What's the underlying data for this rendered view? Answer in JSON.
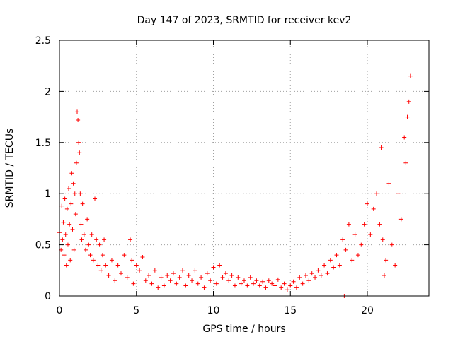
{
  "chart_data": {
    "type": "scatter",
    "title": "Day 147 of 2023, SRMTID for receiver kev2",
    "xlabel": "GPS time / hours",
    "ylabel": "SRMTID / TECUs",
    "xlim": [
      0,
      24
    ],
    "ylim": [
      0,
      2.5
    ],
    "xticks": [
      0,
      5,
      10,
      15,
      20
    ],
    "xtick_labels": [
      "0",
      "5",
      "10",
      "15",
      "20"
    ],
    "yticks": [
      0,
      0.5,
      1,
      1.5,
      2,
      2.5
    ],
    "ytick_labels": [
      "0",
      "0.5",
      "1",
      "1.5",
      "2",
      "2.5"
    ],
    "grid": true,
    "marker": "+",
    "color": "#ff0000",
    "series": [
      {
        "name": "SRMTID",
        "points": [
          [
            0.0,
            0.62
          ],
          [
            0.1,
            0.45
          ],
          [
            0.15,
            0.88
          ],
          [
            0.2,
            0.55
          ],
          [
            0.25,
            0.72
          ],
          [
            0.3,
            0.4
          ],
          [
            0.35,
            0.95
          ],
          [
            0.4,
            0.6
          ],
          [
            0.45,
            0.3
          ],
          [
            0.5,
            0.85
          ],
          [
            0.55,
            0.5
          ],
          [
            0.6,
            1.05
          ],
          [
            0.65,
            0.7
          ],
          [
            0.7,
            0.35
          ],
          [
            0.75,
            0.9
          ],
          [
            0.8,
            1.2
          ],
          [
            0.85,
            0.65
          ],
          [
            0.9,
            1.1
          ],
          [
            0.95,
            0.45
          ],
          [
            1.0,
            1.0
          ],
          [
            1.05,
            0.8
          ],
          [
            1.1,
            1.3
          ],
          [
            1.15,
            1.8
          ],
          [
            1.2,
            1.72
          ],
          [
            1.25,
            1.5
          ],
          [
            1.3,
            1.4
          ],
          [
            1.35,
            1.0
          ],
          [
            1.4,
            0.7
          ],
          [
            1.45,
            0.55
          ],
          [
            1.5,
            0.9
          ],
          [
            1.6,
            0.6
          ],
          [
            1.7,
            0.45
          ],
          [
            1.8,
            0.75
          ],
          [
            1.9,
            0.5
          ],
          [
            2.0,
            0.4
          ],
          [
            2.1,
            0.6
          ],
          [
            2.2,
            0.35
          ],
          [
            2.3,
            0.95
          ],
          [
            2.4,
            0.55
          ],
          [
            2.5,
            0.3
          ],
          [
            2.6,
            0.5
          ],
          [
            2.7,
            0.25
          ],
          [
            2.8,
            0.4
          ],
          [
            2.9,
            0.55
          ],
          [
            3.0,
            0.3
          ],
          [
            3.2,
            0.2
          ],
          [
            3.4,
            0.35
          ],
          [
            3.6,
            0.15
          ],
          [
            3.8,
            0.3
          ],
          [
            4.0,
            0.22
          ],
          [
            4.2,
            0.4
          ],
          [
            4.4,
            0.18
          ],
          [
            4.6,
            0.55
          ],
          [
            4.7,
            0.35
          ],
          [
            4.8,
            0.12
          ],
          [
            5.0,
            0.3
          ],
          [
            5.2,
            0.25
          ],
          [
            5.4,
            0.38
          ],
          [
            5.6,
            0.15
          ],
          [
            5.8,
            0.2
          ],
          [
            6.0,
            0.12
          ],
          [
            6.2,
            0.25
          ],
          [
            6.4,
            0.08
          ],
          [
            6.6,
            0.18
          ],
          [
            6.8,
            0.1
          ],
          [
            7.0,
            0.2
          ],
          [
            7.2,
            0.15
          ],
          [
            7.4,
            0.22
          ],
          [
            7.6,
            0.12
          ],
          [
            7.8,
            0.18
          ],
          [
            8.0,
            0.25
          ],
          [
            8.2,
            0.1
          ],
          [
            8.4,
            0.2
          ],
          [
            8.6,
            0.15
          ],
          [
            8.8,
            0.25
          ],
          [
            9.0,
            0.12
          ],
          [
            9.2,
            0.18
          ],
          [
            9.4,
            0.08
          ],
          [
            9.6,
            0.22
          ],
          [
            9.8,
            0.15
          ],
          [
            10.0,
            0.28
          ],
          [
            10.2,
            0.12
          ],
          [
            10.4,
            0.3
          ],
          [
            10.6,
            0.18
          ],
          [
            10.8,
            0.22
          ],
          [
            11.0,
            0.15
          ],
          [
            11.2,
            0.2
          ],
          [
            11.4,
            0.1
          ],
          [
            11.6,
            0.18
          ],
          [
            11.8,
            0.12
          ],
          [
            12.0,
            0.15
          ],
          [
            12.2,
            0.1
          ],
          [
            12.4,
            0.18
          ],
          [
            12.6,
            0.12
          ],
          [
            12.8,
            0.15
          ],
          [
            13.0,
            0.1
          ],
          [
            13.2,
            0.14
          ],
          [
            13.4,
            0.08
          ],
          [
            13.6,
            0.15
          ],
          [
            13.8,
            0.12
          ],
          [
            14.0,
            0.1
          ],
          [
            14.2,
            0.16
          ],
          [
            14.4,
            0.08
          ],
          [
            14.6,
            0.12
          ],
          [
            14.8,
            0.06
          ],
          [
            15.0,
            0.1
          ],
          [
            15.2,
            0.14
          ],
          [
            15.4,
            0.08
          ],
          [
            15.6,
            0.18
          ],
          [
            15.8,
            0.12
          ],
          [
            16.0,
            0.2
          ],
          [
            16.2,
            0.15
          ],
          [
            16.4,
            0.22
          ],
          [
            16.6,
            0.18
          ],
          [
            16.8,
            0.25
          ],
          [
            17.0,
            0.2
          ],
          [
            17.2,
            0.3
          ],
          [
            17.4,
            0.22
          ],
          [
            17.6,
            0.35
          ],
          [
            17.8,
            0.28
          ],
          [
            18.0,
            0.4
          ],
          [
            18.2,
            0.3
          ],
          [
            18.4,
            0.55
          ],
          [
            18.5,
            0.0
          ],
          [
            18.6,
            0.45
          ],
          [
            18.8,
            0.7
          ],
          [
            19.0,
            0.35
          ],
          [
            19.2,
            0.6
          ],
          [
            19.4,
            0.4
          ],
          [
            19.6,
            0.5
          ],
          [
            19.8,
            0.7
          ],
          [
            20.0,
            0.9
          ],
          [
            20.2,
            0.6
          ],
          [
            20.4,
            0.85
          ],
          [
            20.6,
            1.0
          ],
          [
            20.8,
            0.7
          ],
          [
            20.9,
            1.45
          ],
          [
            21.0,
            0.55
          ],
          [
            21.1,
            0.2
          ],
          [
            21.2,
            0.35
          ],
          [
            21.4,
            1.1
          ],
          [
            21.6,
            0.5
          ],
          [
            21.8,
            0.3
          ],
          [
            22.0,
            1.0
          ],
          [
            22.2,
            0.75
          ],
          [
            22.4,
            1.55
          ],
          [
            22.5,
            1.3
          ],
          [
            22.6,
            1.75
          ],
          [
            22.7,
            1.9
          ],
          [
            22.8,
            2.15
          ]
        ]
      }
    ]
  }
}
